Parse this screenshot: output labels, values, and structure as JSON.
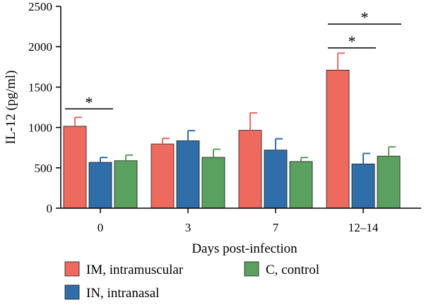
{
  "chart_data": {
    "type": "bar",
    "title": "",
    "xlabel": "Days post-infection",
    "ylabel": "IL-12 (pg/ml)",
    "ylim": [
      0,
      2500
    ],
    "yticks": [
      0,
      500,
      1000,
      1500,
      2000,
      2500
    ],
    "categories": [
      "0",
      "3",
      "7",
      "12–14"
    ],
    "series": [
      {
        "name": "IM, intramuscular",
        "color": "#ef6a5e",
        "values": [
          1015,
          795,
          965,
          1710
        ],
        "errors": [
          110,
          70,
          215,
          210
        ]
      },
      {
        "name": "IN, intranasal",
        "color": "#2f6ea8",
        "values": [
          568,
          835,
          720,
          548
        ],
        "errors": [
          60,
          125,
          140,
          130
        ]
      },
      {
        "name": "C, control",
        "color": "#5aa05e",
        "values": [
          588,
          630,
          578,
          645
        ],
        "errors": [
          70,
          100,
          50,
          115
        ]
      }
    ],
    "significance": [
      {
        "label": "*",
        "category": 0,
        "from_series": 0,
        "to_series": 1
      },
      {
        "label": "*",
        "category": 3,
        "from_series": 0,
        "to_series": 1
      },
      {
        "label": "*",
        "category": 3,
        "from_series": 0,
        "to_series": 2
      }
    ],
    "legend_placement": "bottom",
    "grid": false
  }
}
